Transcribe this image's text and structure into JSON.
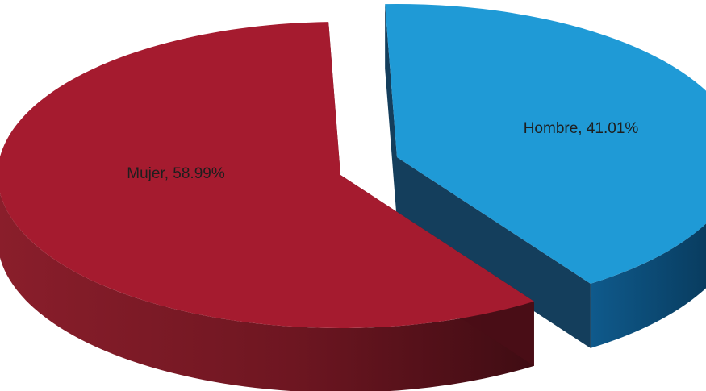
{
  "chart_data": {
    "type": "pie",
    "style": "3d-exploded",
    "categories": [
      "Hombre",
      "Mujer"
    ],
    "values": [
      41.01,
      58.99
    ],
    "labels": [
      "Hombre, 41.01%",
      "Mujer, 58.99%"
    ],
    "legend": "none",
    "colors": {
      "Hombre": {
        "top": "#1f9ad6",
        "side": "#0c4a74",
        "side_dark": "#073453"
      },
      "Mujer": {
        "top": "#a51b2f",
        "side": "#6e1621",
        "side_dark": "#4a0e16"
      }
    }
  }
}
